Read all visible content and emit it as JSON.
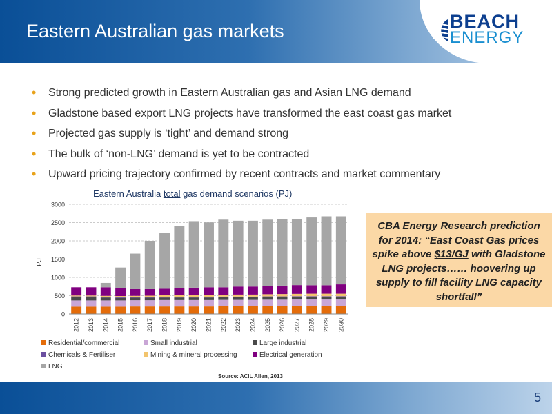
{
  "slide": {
    "title": "Eastern Australian gas markets",
    "page_number": "5",
    "logo": {
      "line1": "BEACH",
      "line2": "ENERGY",
      "emblem": "wave-sun-emblem-icon"
    }
  },
  "bullets": [
    "Strong predicted growth in Eastern Australian gas and Asian LNG demand",
    "Gladstone based export LNG projects have transformed the east coast gas market",
    "Projected gas supply is ‘tight’ and demand strong",
    "The bulk of ‘non-LNG’ demand is yet to be contracted",
    "Upward pricing trajectory confirmed by recent contracts and market commentary"
  ],
  "callout": {
    "before": "CBA Energy Research prediction for 2014: “East Coast Gas prices spike above ",
    "price": "$13/GJ",
    "after": " with Gladstone LNG projects…… hoovering up supply to fill facility LNG capacity shortfall”"
  },
  "chart_data": {
    "type": "bar",
    "stacked": true,
    "title_before": "Eastern Australia ",
    "title_emphasis": "total",
    "title_after": " gas demand scenarios (PJ)",
    "xlabel": "",
    "ylabel": "PJ",
    "ylim": [
      0,
      3000
    ],
    "yticks": [
      0,
      500,
      1000,
      1500,
      2000,
      2500,
      3000
    ],
    "grid": true,
    "legend_position": "bottom",
    "source": "Source: ACIL Allen, 2013",
    "categories": [
      "2012",
      "2013",
      "2014",
      "2015",
      "2016",
      "2017",
      "2018",
      "2019",
      "2020",
      "2021",
      "2022",
      "2023",
      "2024",
      "2025",
      "2026",
      "2027",
      "2028",
      "2029",
      "2030"
    ],
    "series": [
      {
        "name": "Residential/commercial",
        "color": "#e46c0a",
        "values": [
          200,
          200,
          200,
          200,
          205,
          205,
          205,
          205,
          205,
          205,
          210,
          210,
          210,
          210,
          210,
          215,
          215,
          215,
          215
        ]
      },
      {
        "name": "Small industrial",
        "color": "#c9a6d6",
        "values": [
          170,
          170,
          170,
          170,
          170,
          170,
          175,
          175,
          175,
          175,
          175,
          175,
          175,
          180,
          180,
          180,
          180,
          180,
          180
        ]
      },
      {
        "name": "Large industrial",
        "color": "#4a4a4a",
        "values": [
          90,
          90,
          80,
          70,
          70,
          70,
          70,
          70,
          70,
          70,
          70,
          70,
          70,
          70,
          70,
          70,
          70,
          70,
          70
        ]
      },
      {
        "name": "Chemicals & Fertiliser",
        "color": "#6b4fa0",
        "values": [
          20,
          20,
          20,
          20,
          20,
          20,
          20,
          20,
          20,
          20,
          20,
          20,
          20,
          20,
          20,
          20,
          20,
          20,
          20
        ]
      },
      {
        "name": "Mining & mineral processing",
        "color": "#f2c46d",
        "values": [
          25,
          25,
          25,
          30,
          30,
          35,
          40,
          40,
          45,
          45,
          50,
          55,
          55,
          60,
          65,
          65,
          70,
          70,
          70
        ]
      },
      {
        "name": "Electrical generation",
        "color": "#800080",
        "values": [
          225,
          225,
          235,
          210,
          185,
          180,
          180,
          205,
          205,
          215,
          205,
          220,
          220,
          220,
          230,
          240,
          230,
          230,
          255
        ]
      },
      {
        "name": "LNG",
        "color": "#a6a6a6",
        "values": [
          0,
          0,
          120,
          570,
          970,
          1320,
          1520,
          1690,
          1800,
          1775,
          1850,
          1800,
          1800,
          1820,
          1825,
          1810,
          1855,
          1885,
          1860
        ]
      }
    ]
  }
}
